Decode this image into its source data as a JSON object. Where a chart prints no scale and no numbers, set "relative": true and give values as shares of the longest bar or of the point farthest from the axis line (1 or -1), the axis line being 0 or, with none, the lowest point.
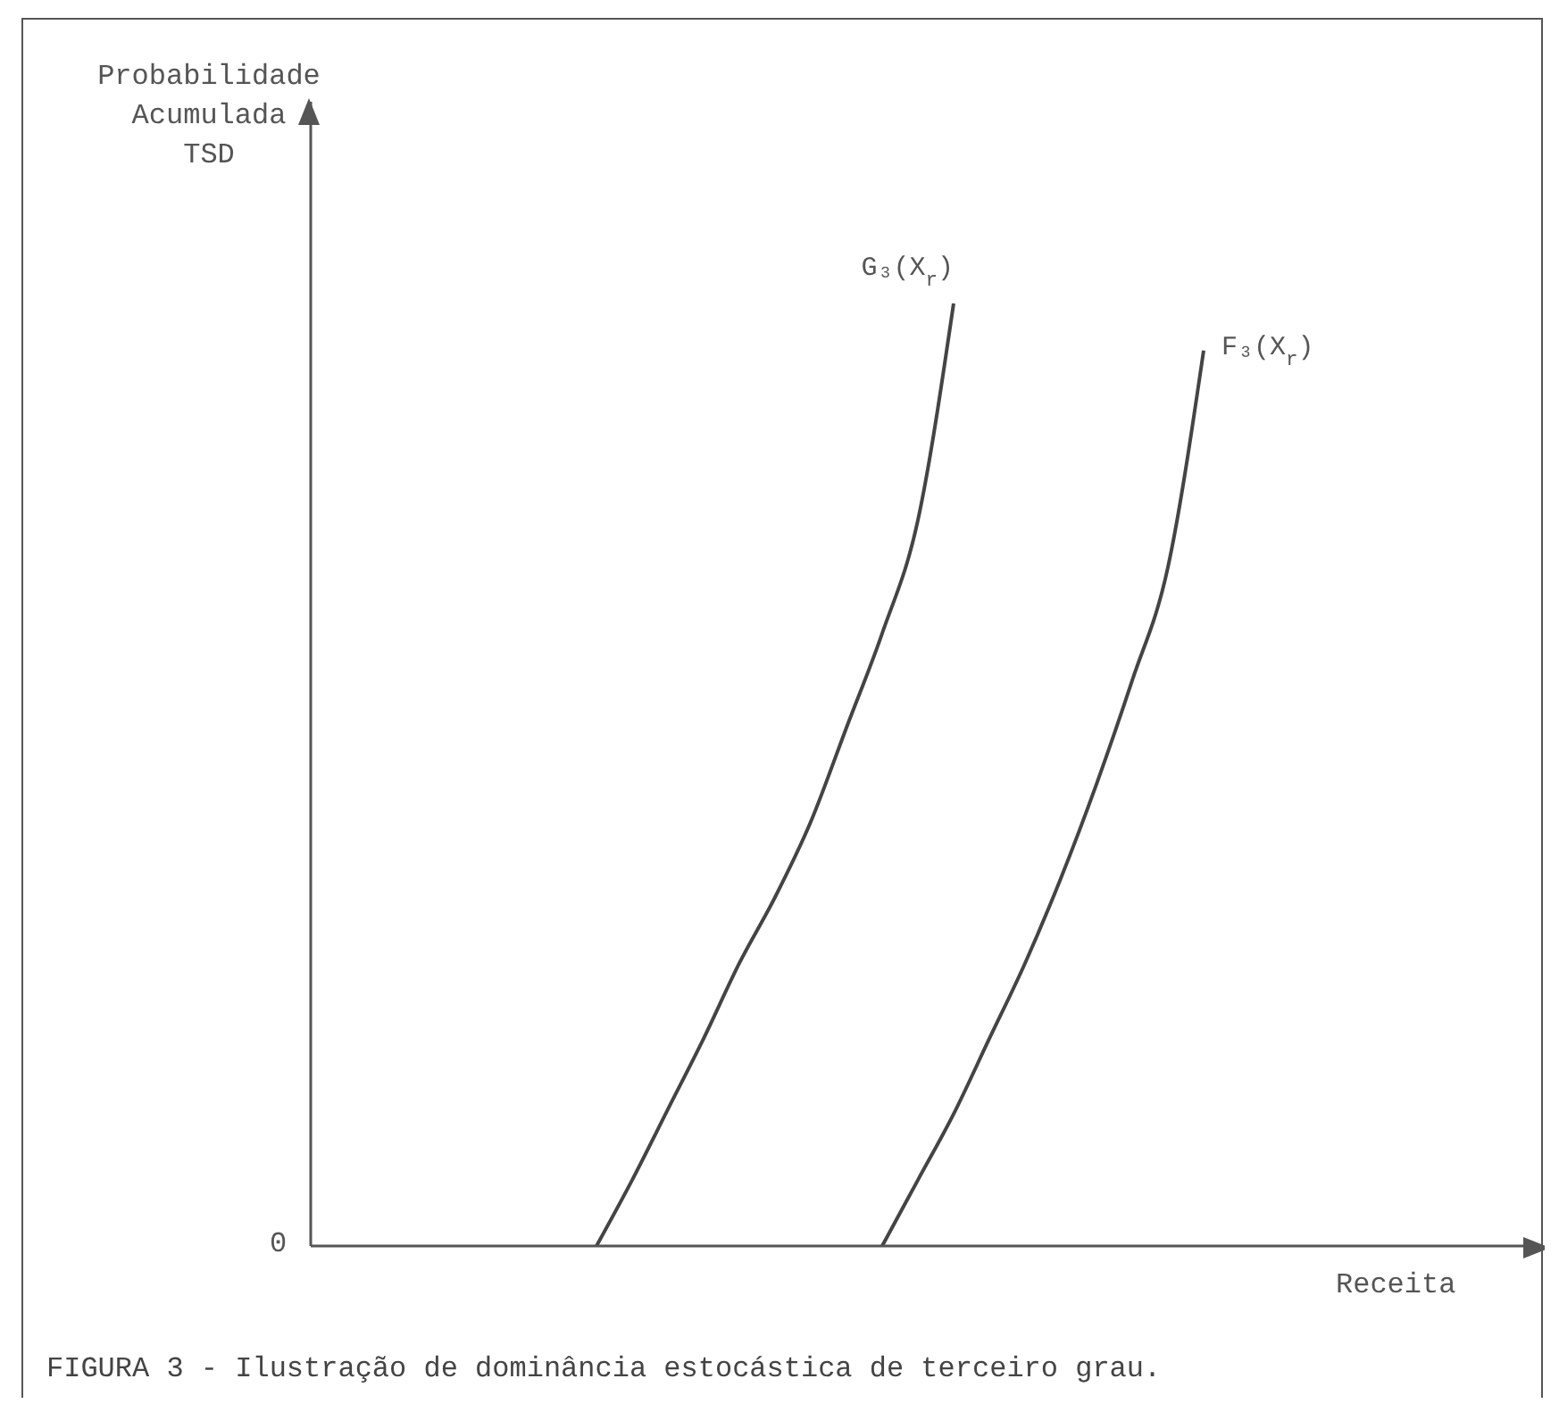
{
  "chart_data": {
    "type": "line",
    "relative": true,
    "xlabel": "Receita",
    "ylabel": "Probabilidade Acumulada TSD",
    "annotations": [
      "0",
      "FIGURA 3 - Ilustração de dominância estocástica de terceiro grau."
    ],
    "categories": [
      null,
      null,
      null,
      null,
      null,
      null,
      null,
      null,
      null,
      null,
      null,
      null,
      null,
      null,
      null,
      null,
      null,
      null,
      null,
      null,
      null,
      null,
      null,
      null,
      null,
      null,
      null,
      null,
      null,
      null,
      null,
      null,
      null,
      null,
      null
    ],
    "series": [
      {
        "name": "G₃(X$_{r}$)",
        "color": "#444444",
        "values": [
          null,
          null,
          null,
          null,
          null,
          null,
          null,
          null,
          0,
          0.07,
          0.145,
          0.22,
          0.3,
          0.37,
          0.45,
          0.55,
          0.65,
          0.77,
          1.0,
          null,
          null,
          null,
          null,
          null,
          null,
          null,
          null,
          null,
          null,
          null,
          null,
          null,
          null,
          null,
          null
        ]
      },
      {
        "name": "F₃(X$_{r}$)",
        "color": "#444444",
        "values": [
          null,
          null,
          null,
          null,
          null,
          null,
          null,
          null,
          null,
          null,
          null,
          null,
          null,
          null,
          null,
          null,
          0,
          0.07,
          0.14,
          0.22,
          0.3,
          0.39,
          0.49,
          0.6,
          0.72,
          0.95,
          null,
          null,
          null,
          null,
          null,
          null,
          null,
          null,
          null
        ]
      }
    ],
    "legend": false,
    "grid": false,
    "marker": "none",
    "line_style": "solid"
  }
}
